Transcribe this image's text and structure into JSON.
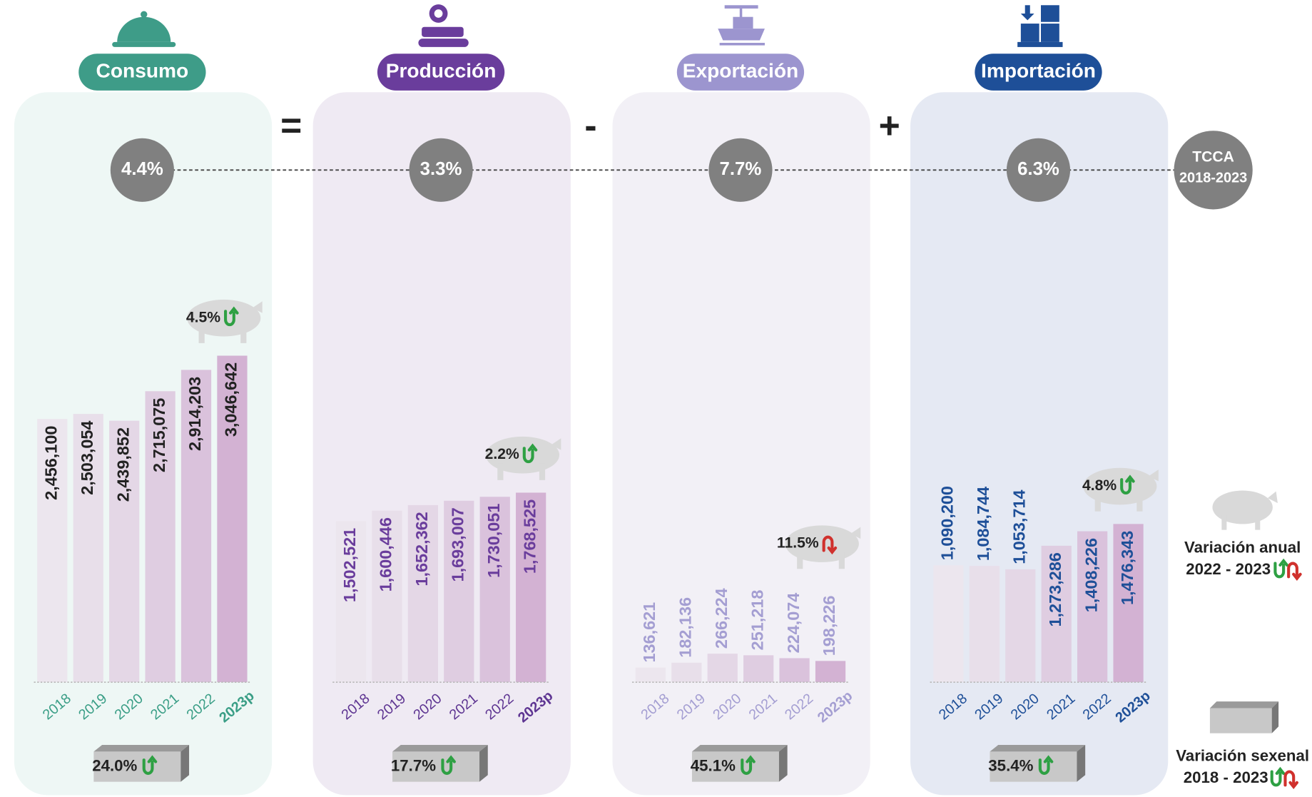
{
  "chart_data": [
    {
      "type": "bar",
      "title": "Consumo",
      "categories": [
        "2018",
        "2019",
        "2020",
        "2021",
        "2022",
        "2023p"
      ],
      "values": [
        2456100,
        2503054,
        2439852,
        2715075,
        2914203,
        3046642
      ],
      "value_labels": [
        "2,456,100",
        "2,503,054",
        "2,439,852",
        "2,715,075",
        "2,914,203",
        "3,046,642"
      ],
      "ylim": [
        0,
        3100000
      ],
      "tcca": "4.4%",
      "annual_variation": "4.5%",
      "annual_trend": "up",
      "sexennial_variation": "24.0%",
      "sexennial_trend": "up",
      "panel_color": "#eef7f5",
      "title_color": "#3e9c88",
      "label_color": "#222222",
      "year_color": "#3a9e86",
      "colors": [
        "#ece6ee",
        "#e8dfea",
        "#e4d7e6",
        "#dfcde1",
        "#dac2dc",
        "#d3b2d3"
      ]
    },
    {
      "type": "bar",
      "title": "Producción",
      "categories": [
        "2018",
        "2019",
        "2020",
        "2021",
        "2022",
        "2023p"
      ],
      "values": [
        1502521,
        1600446,
        1652362,
        1693007,
        1730051,
        1768525
      ],
      "value_labels": [
        "1,502,521",
        "1,600,446",
        "1,652,362",
        "1,693,007",
        "1,730,051",
        "1,768,525"
      ],
      "ylim": [
        0,
        3100000
      ],
      "tcca": "3.3%",
      "annual_variation": "2.2%",
      "annual_trend": "up",
      "sexennial_variation": "17.7%",
      "sexennial_trend": "up",
      "panel_color": "#efeaf3",
      "title_color": "#6a3d9c",
      "label_color": "#6a3d9c",
      "year_color": "#5e3592",
      "colors": [
        "#ece6ee",
        "#e8dfea",
        "#e4d7e6",
        "#dfcde1",
        "#dac2dc",
        "#d3b2d3"
      ]
    },
    {
      "type": "bar",
      "title": "Exportación",
      "categories": [
        "2018",
        "2019",
        "2020",
        "2021",
        "2022",
        "2023p"
      ],
      "values": [
        136621,
        182136,
        266224,
        251218,
        224074,
        198226
      ],
      "value_labels": [
        "136,621",
        "182,136",
        "266,224",
        "251,218",
        "224,074",
        "198,226"
      ],
      "ylim": [
        0,
        3100000
      ],
      "tcca": "7.7%",
      "annual_variation": "11.5%",
      "annual_trend": "down",
      "sexennial_variation": "45.1%",
      "sexennial_trend": "up",
      "panel_color": "#f2f0f6",
      "title_color": "#9c95cf",
      "label_color": "#a49ed2",
      "year_color": "#a49ed2",
      "colors": [
        "#ece6ee",
        "#e8dfea",
        "#e4d7e6",
        "#dfcde1",
        "#dac2dc",
        "#d3b2d3"
      ]
    },
    {
      "type": "bar",
      "title": "Importación",
      "categories": [
        "2018",
        "2019",
        "2020",
        "2021",
        "2022",
        "2023p"
      ],
      "values": [
        1090200,
        1084744,
        1053714,
        1273286,
        1408226,
        1476343
      ],
      "value_labels": [
        "1,090,200",
        "1,084,744",
        "1,053,714",
        "1,273,286",
        "1,408,226",
        "1,476,343"
      ],
      "ylim": [
        0,
        3100000
      ],
      "tcca": "6.3%",
      "annual_variation": "4.8%",
      "annual_trend": "up",
      "sexennial_variation": "35.4%",
      "sexennial_trend": "up",
      "panel_color": "#e5e9f3",
      "title_color": "#1e4f98",
      "label_color": "#1e4f98",
      "year_color": "#1e4f98",
      "colors": [
        "#ece6ee",
        "#e8dfea",
        "#e4d7e6",
        "#dfcde1",
        "#dac2dc",
        "#d3b2d3"
      ]
    }
  ],
  "operators": [
    "=",
    "-",
    "+"
  ],
  "legend": {
    "tcca": "TCCA",
    "tcca_period": "2018-2023",
    "annual": "Variación anual",
    "annual_period": "2022 - 2023",
    "sexennial": "Variación sexenal",
    "sexennial_period": "2018 - 2023"
  }
}
